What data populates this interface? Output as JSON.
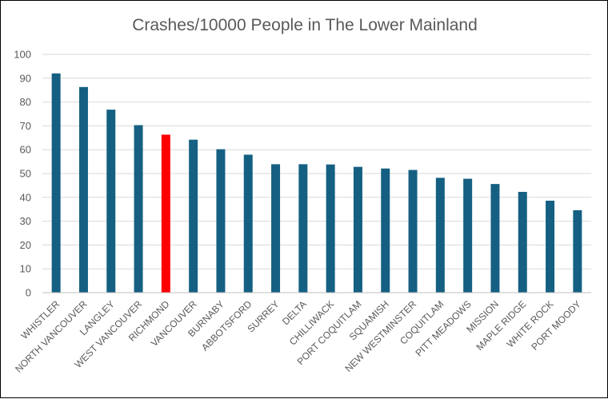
{
  "chart_data": {
    "type": "bar",
    "title": "Crashes/10000 People in The Lower Mainland",
    "xlabel": "",
    "ylabel": "",
    "ylim": [
      0,
      100
    ],
    "yticks": [
      "0",
      "10",
      "20",
      "30",
      "40",
      "50",
      "60",
      "70",
      "80",
      "90",
      "100"
    ],
    "grid": true,
    "legend": "none",
    "categories": [
      "WHISTLER",
      "NORTH VANCOUVER",
      "LANGLEY",
      "WEST VANCOUVER",
      "RICHMOND",
      "VANCOUVER",
      "BURNABY",
      "ABBOTSFORD",
      "SURREY",
      "DELTA",
      "CHILLIWACK",
      "PORT COQUITLAM",
      "SQUAMISH",
      "NEW WESTMINSTER",
      "COQUITLAM",
      "PITT MEADOWS",
      "MISSION",
      "MAPLE RIDGE",
      "WHITE ROCK",
      "PORT MOODY"
    ],
    "values": [
      92,
      86.3,
      76.8,
      70.3,
      66.3,
      64.2,
      60.2,
      57.9,
      53.9,
      53.9,
      53.8,
      52.8,
      52.1,
      51.5,
      48.2,
      47.8,
      45.6,
      42.3,
      38.6,
      34.6
    ],
    "colors": {
      "default": "#156082",
      "highlight": "#ff0000"
    },
    "highlight_category": "RICHMOND"
  }
}
